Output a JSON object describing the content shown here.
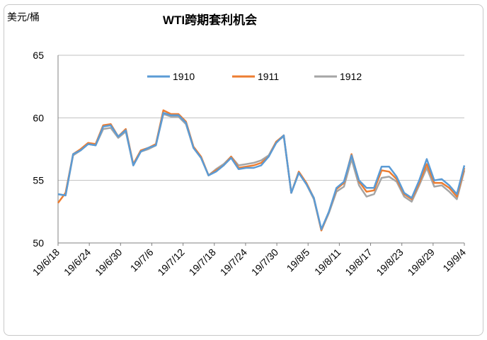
{
  "chart_data": {
    "type": "line",
    "title": "WTI跨期套利机会",
    "ylabel": "美元/桶",
    "ylim": [
      50,
      65
    ],
    "yticks": [
      50,
      55,
      60,
      65
    ],
    "grid": "horizontal",
    "legend": "top",
    "x_tick_labels": [
      "19/6/18",
      "19/6/24",
      "19/6/30",
      "19/7/6",
      "19/7/12",
      "19/7/18",
      "19/7/24",
      "19/7/30",
      "19/8/5",
      "19/8/11",
      "19/8/17",
      "19/8/23",
      "19/8/29",
      "19/9/4"
    ],
    "x": [
      "6/18",
      "6/19",
      "6/20",
      "6/21",
      "6/24",
      "6/25",
      "6/26",
      "6/27",
      "6/28",
      "7/1",
      "7/2",
      "7/3",
      "7/5",
      "7/8",
      "7/9",
      "7/10",
      "7/11",
      "7/12",
      "7/15",
      "7/16",
      "7/17",
      "7/18",
      "7/19",
      "7/22",
      "7/23",
      "7/24",
      "7/25",
      "7/26",
      "7/29",
      "7/30",
      "7/31",
      "8/1",
      "8/2",
      "8/5",
      "8/6",
      "8/7",
      "8/8",
      "8/9",
      "8/12",
      "8/13",
      "8/14",
      "8/15",
      "8/16",
      "8/19",
      "8/20",
      "8/21",
      "8/22",
      "8/23",
      "8/26",
      "8/27",
      "8/28",
      "8/29",
      "8/30",
      "9/3",
      "9/4"
    ],
    "series": [
      {
        "name": "1910",
        "color": "#5b9bd5",
        "values": [
          53.9,
          53.8,
          57.1,
          57.4,
          57.9,
          57.8,
          59.3,
          59.4,
          58.5,
          59.0,
          56.2,
          57.3,
          57.6,
          57.8,
          60.4,
          60.2,
          60.2,
          59.6,
          57.6,
          56.8,
          55.4,
          55.7,
          56.2,
          56.8,
          55.9,
          56.0,
          56.0,
          56.2,
          56.9,
          58.0,
          58.6,
          54.0,
          55.6,
          54.7,
          53.6,
          51.1,
          52.5,
          54.4,
          54.9,
          57.0,
          55.0,
          54.4,
          54.4,
          56.1,
          56.1,
          55.3,
          54.0,
          53.6,
          55.0,
          56.7,
          55.0,
          55.1,
          54.6,
          53.9,
          56.2
        ]
      },
      {
        "name": "1911",
        "color": "#ed7d31",
        "values": [
          53.2,
          54.0,
          57.1,
          57.5,
          58.0,
          57.9,
          59.4,
          59.5,
          58.5,
          59.1,
          56.3,
          57.4,
          57.6,
          57.9,
          60.6,
          60.3,
          60.3,
          59.7,
          57.7,
          56.9,
          55.4,
          55.8,
          56.2,
          56.9,
          56.0,
          56.1,
          56.2,
          56.4,
          56.9,
          58.1,
          58.6,
          54.0,
          55.7,
          54.8,
          53.6,
          51.0,
          52.5,
          54.3,
          54.8,
          57.1,
          54.9,
          54.1,
          54.2,
          55.8,
          55.7,
          55.1,
          53.9,
          53.5,
          54.8,
          56.3,
          54.8,
          54.8,
          54.4,
          53.7,
          56.0
        ]
      },
      {
        "name": "1912",
        "color": "#a5a5a5",
        "values": [
          53.9,
          53.8,
          57.0,
          57.4,
          57.9,
          57.8,
          59.1,
          59.2,
          58.4,
          58.9,
          56.2,
          57.3,
          57.5,
          57.8,
          60.3,
          60.1,
          60.1,
          59.5,
          57.6,
          56.8,
          55.4,
          55.9,
          56.3,
          56.9,
          56.2,
          56.3,
          56.4,
          56.6,
          57.0,
          58.1,
          58.5,
          54.0,
          55.6,
          54.7,
          53.5,
          51.0,
          52.4,
          54.1,
          54.5,
          56.7,
          54.6,
          53.7,
          53.9,
          55.2,
          55.3,
          54.9,
          53.7,
          53.3,
          54.6,
          56.0,
          54.5,
          54.6,
          54.1,
          53.5,
          55.8
        ]
      }
    ]
  }
}
